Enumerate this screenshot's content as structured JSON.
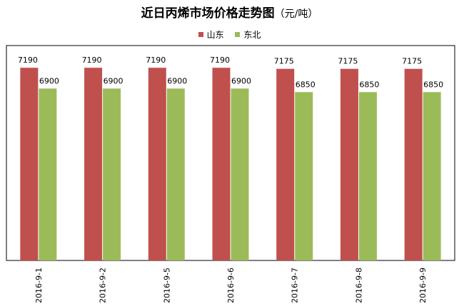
{
  "chart_data": {
    "type": "bar",
    "title": "近日丙烯市场价格走势图",
    "title_unit": "（元/吨）",
    "categories": [
      "2016-9-1",
      "2016-9-2",
      "2016-9-5",
      "2016-9-6",
      "2016-9-7",
      "2016-9-8",
      "2016-9-9"
    ],
    "series": [
      {
        "name": "山东",
        "color": "#c0504d",
        "values": [
          7190,
          7190,
          7190,
          7190,
          7175,
          7175,
          7175
        ]
      },
      {
        "name": "东北",
        "color": "#9bbb59",
        "values": [
          6900,
          6900,
          6900,
          6900,
          6850,
          6850,
          6850
        ]
      }
    ],
    "ylim": [
      4500,
      7500
    ],
    "grid": false,
    "legend_position": "top-center",
    "data_labels": true
  }
}
